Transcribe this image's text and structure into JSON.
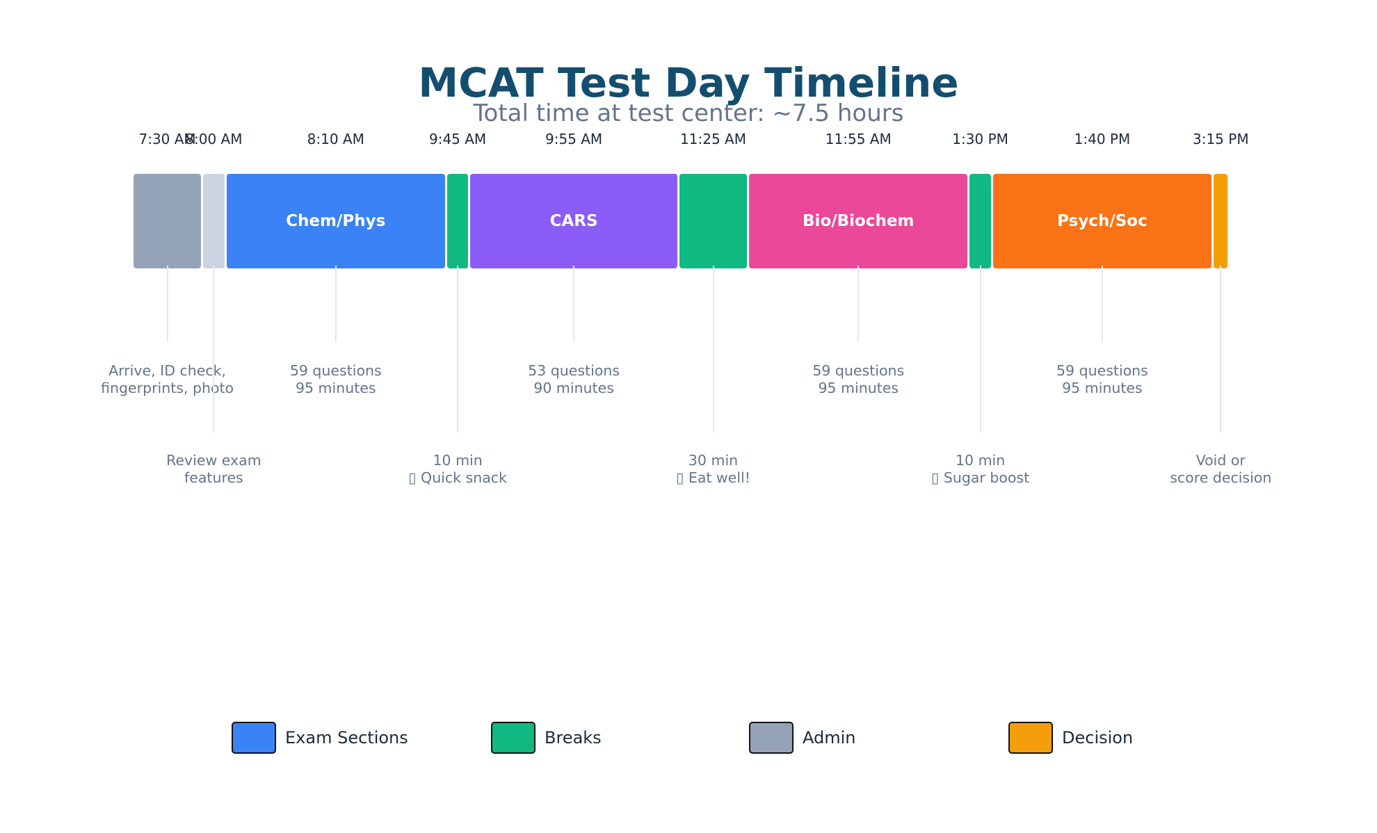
{
  "chart_data": {
    "type": "timeline",
    "title": "MCAT Test Day Timeline",
    "subtitle": "Total time at test center: ~7.5 hours",
    "segments": [
      {
        "start": "7:30 AM",
        "duration_min": 30,
        "category": "Admin",
        "label": "",
        "note": [
          "Arrive, ID check,",
          "fingerprints, photo"
        ],
        "color": "#94a3b8"
      },
      {
        "start": "8:00 AM",
        "duration_min": 10,
        "category": "Admin",
        "label": "",
        "note": [
          "Review exam",
          "features"
        ],
        "color": "#cbd5e1"
      },
      {
        "start": "8:10 AM",
        "duration_min": 95,
        "category": "Exam Sections",
        "label": "Chem/Phys",
        "note": [
          "59 questions",
          "95 minutes"
        ],
        "color": "#3b82f6"
      },
      {
        "start": "9:45 AM",
        "duration_min": 10,
        "category": "Breaks",
        "label": "",
        "note": [
          "10 min",
          "▯ Quick snack"
        ],
        "color": "#10b981"
      },
      {
        "start": "9:55 AM",
        "duration_min": 90,
        "category": "Exam Sections",
        "label": "CARS",
        "note": [
          "53 questions",
          "90 minutes"
        ],
        "color": "#8b5cf6"
      },
      {
        "start": "11:25 AM",
        "duration_min": 30,
        "category": "Breaks",
        "label": "",
        "note": [
          "30 min",
          "▯ Eat well!"
        ],
        "color": "#10b981"
      },
      {
        "start": "11:55 AM",
        "duration_min": 95,
        "category": "Exam Sections",
        "label": "Bio/Biochem",
        "note": [
          "59 questions",
          "95 minutes"
        ],
        "color": "#ec4899"
      },
      {
        "start": "1:30 PM",
        "duration_min": 10,
        "category": "Breaks",
        "label": "",
        "note": [
          "10 min",
          "▯ Sugar boost"
        ],
        "color": "#10b981"
      },
      {
        "start": "1:40 PM",
        "duration_min": 95,
        "category": "Exam Sections",
        "label": "Psych/Soc",
        "note": [
          "59 questions",
          "95 minutes"
        ],
        "color": "#f97316"
      },
      {
        "start": "3:15 PM",
        "duration_min": 7,
        "category": "Decision",
        "label": "",
        "note": [
          "Void or",
          "score decision"
        ],
        "color": "#f59e0b"
      }
    ],
    "legend": [
      {
        "label": "Exam Sections",
        "color": "#3b82f6"
      },
      {
        "label": "Breaks",
        "color": "#10b981"
      },
      {
        "label": "Admin",
        "color": "#94a3b8"
      },
      {
        "label": "Decision",
        "color": "#f59e0b"
      }
    ]
  }
}
